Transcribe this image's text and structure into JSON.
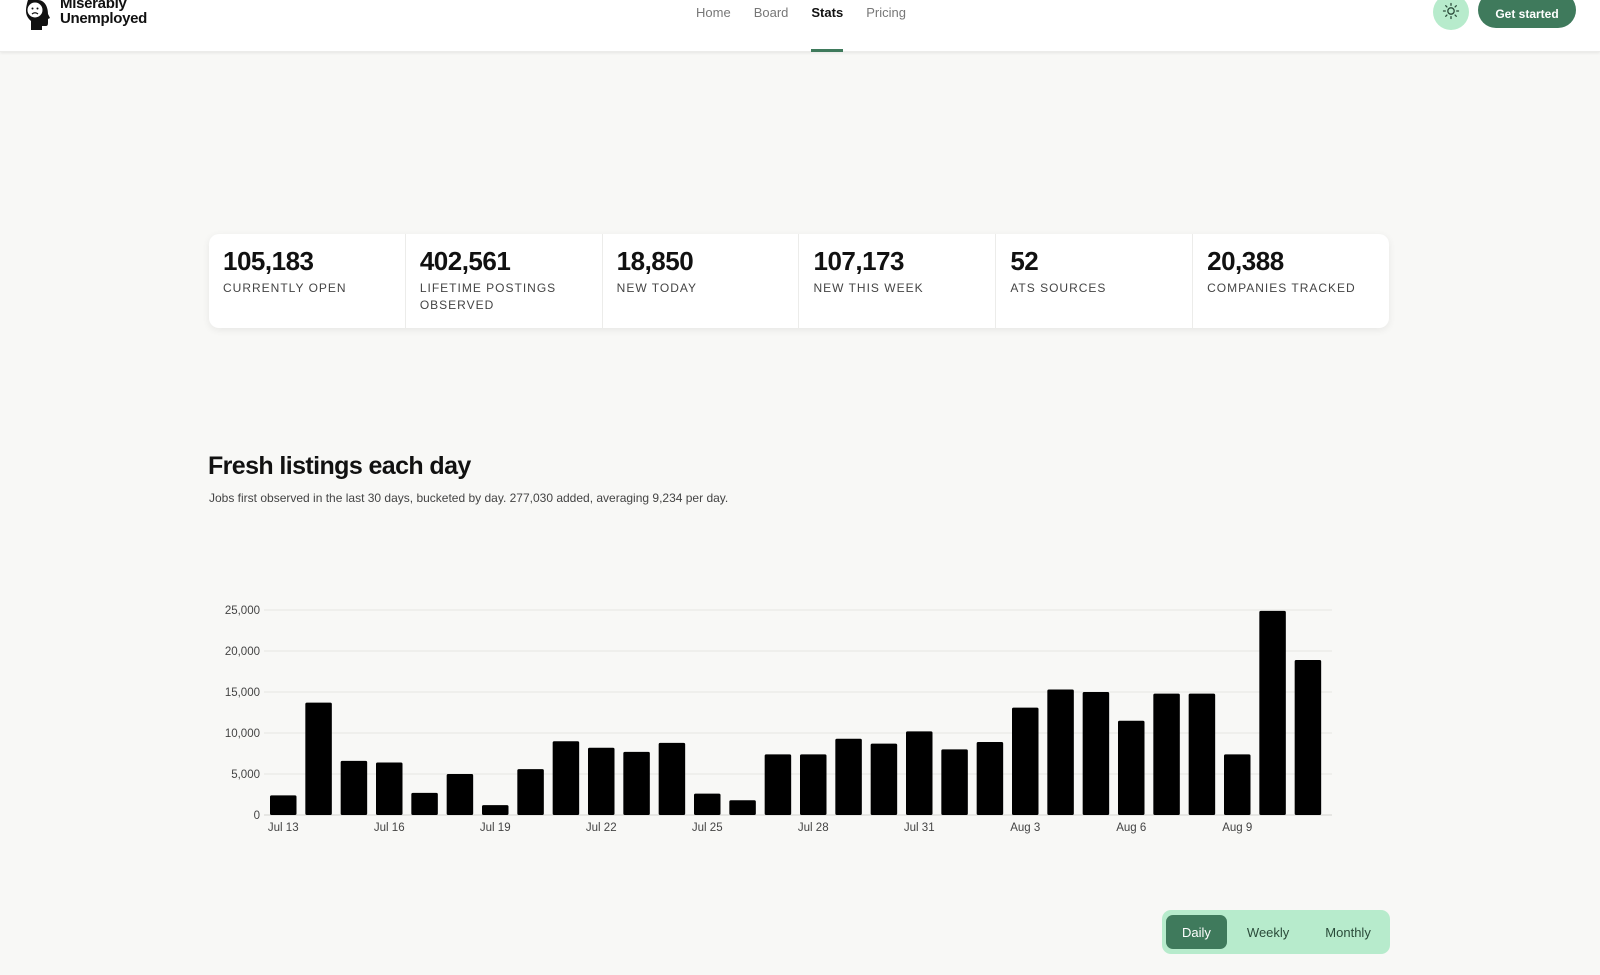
{
  "brand": {
    "line1": "Miserably",
    "line2": "Unemployed"
  },
  "nav": [
    {
      "label": "Home",
      "active": false
    },
    {
      "label": "Board",
      "active": false
    },
    {
      "label": "Stats",
      "active": true
    },
    {
      "label": "Pricing",
      "active": false
    }
  ],
  "header": {
    "cta_label": "Get started",
    "theme_icon": "sun-icon"
  },
  "stats": [
    {
      "value": "105,183",
      "label": "CURRENTLY OPEN"
    },
    {
      "value": "402,561",
      "label": "LIFETIME POSTINGS OBSERVED"
    },
    {
      "value": "18,850",
      "label": "NEW TODAY"
    },
    {
      "value": "107,173",
      "label": "NEW THIS WEEK"
    },
    {
      "value": "52",
      "label": "ATS SOURCES"
    },
    {
      "value": "20,388",
      "label": "COMPANIES TRACKED"
    }
  ],
  "section": {
    "title": "Fresh listings each day",
    "subtitle": "Jobs first observed in the last 30 days, bucketed by day. 277,030 added, averaging 9,234 per day."
  },
  "chart_data": {
    "type": "bar",
    "categories": [
      "Jul 13",
      "Jul 14",
      "Jul 15",
      "Jul 16",
      "Jul 17",
      "Jul 18",
      "Jul 19",
      "Jul 20",
      "Jul 21",
      "Jul 22",
      "Jul 23",
      "Jul 24",
      "Jul 25",
      "Jul 26",
      "Jul 27",
      "Jul 28",
      "Jul 29",
      "Jul 30",
      "Jul 31",
      "Aug 1",
      "Aug 2",
      "Aug 3",
      "Aug 4",
      "Aug 5",
      "Aug 6",
      "Aug 7",
      "Aug 8",
      "Aug 9",
      "Aug 10",
      "Aug 11"
    ],
    "tick_labels": [
      "Jul 13",
      "Jul 16",
      "Jul 19",
      "Jul 22",
      "Jul 25",
      "Jul 28",
      "Jul 31",
      "Aug 3",
      "Aug 6",
      "Aug 9"
    ],
    "values": [
      2400,
      13700,
      6600,
      6400,
      2700,
      5000,
      1200,
      5600,
      9000,
      8200,
      7700,
      8800,
      2600,
      1800,
      7400,
      7400,
      9300,
      8700,
      10200,
      8000,
      8900,
      13100,
      15300,
      15000,
      11500,
      14800,
      14800,
      7400,
      24900,
      18900
    ],
    "yticks": [
      "0",
      "5,000",
      "10,000",
      "15,000",
      "20,000",
      "25,000"
    ],
    "ylim": [
      0,
      25000
    ],
    "bar_color": "#000000",
    "grid": true
  },
  "granularity": {
    "options": [
      {
        "label": "Daily",
        "active": true
      },
      {
        "label": "Weekly",
        "active": false
      },
      {
        "label": "Monthly",
        "active": false
      }
    ]
  }
}
